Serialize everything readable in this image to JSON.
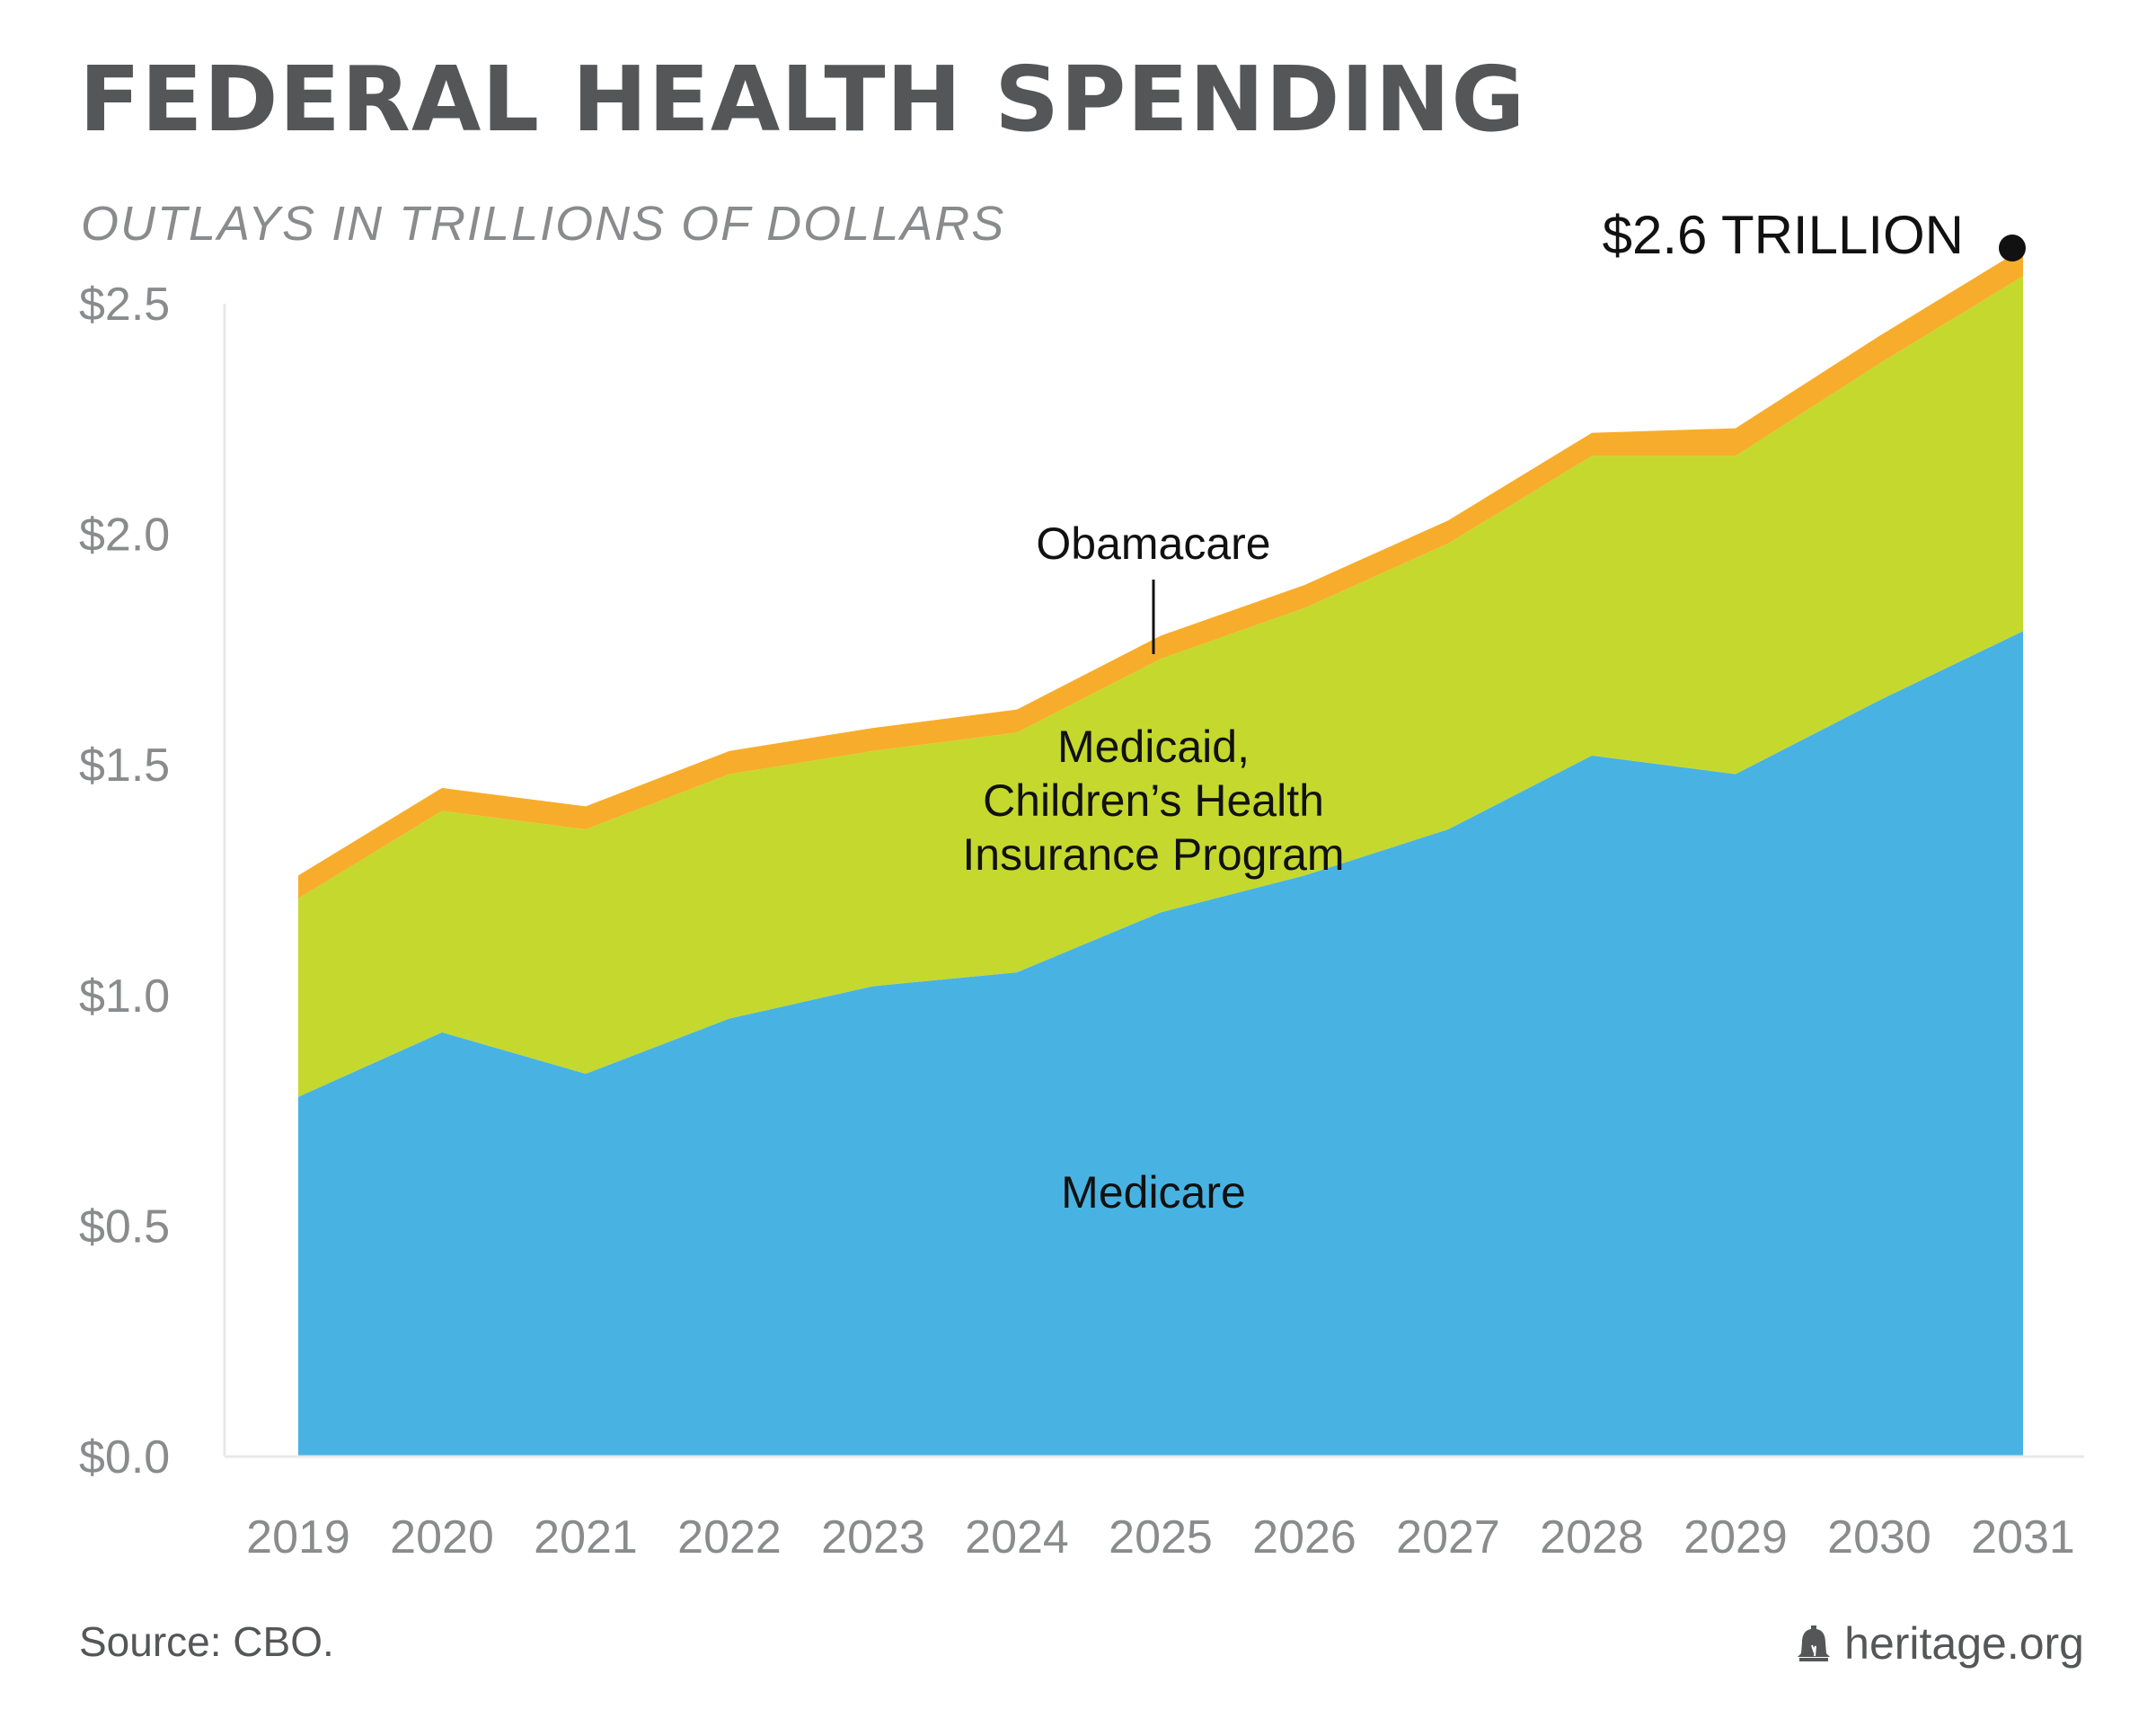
{
  "header": {
    "title": "FEDERAL HEALTH SPENDING",
    "subtitle": "OUTLAYS IN TRILLIONS OF DOLLARS"
  },
  "footer": {
    "source": "Source: CBO.",
    "brand": "heritage.org",
    "brand_icon": "liberty-bell-icon"
  },
  "chart_data": {
    "type": "area",
    "stacked": true,
    "categories": [
      "2019",
      "2020",
      "2021",
      "2022",
      "2023",
      "2024",
      "2025",
      "2026",
      "2027",
      "2028",
      "2029",
      "2030",
      "2031"
    ],
    "series": [
      {
        "name": "Medicare",
        "color": "#48b3e2",
        "values": [
          0.78,
          0.92,
          0.83,
          0.95,
          1.02,
          1.05,
          1.18,
          1.26,
          1.36,
          1.52,
          1.48,
          1.64,
          1.79
        ]
      },
      {
        "name": "Medicaid, Children’s Health Insurance Program",
        "color": "#c5d82e",
        "values": [
          0.43,
          0.48,
          0.53,
          0.53,
          0.51,
          0.52,
          0.55,
          0.58,
          0.62,
          0.65,
          0.69,
          0.73,
          0.77
        ]
      },
      {
        "name": "Obamacare",
        "color": "#f7ad2b",
        "values": [
          0.05,
          0.05,
          0.05,
          0.05,
          0.05,
          0.05,
          0.05,
          0.05,
          0.05,
          0.05,
          0.06,
          0.06,
          0.06
        ]
      }
    ],
    "series_labels": {
      "medicare": "Medicare",
      "medicaid_lines": [
        "Medicaid,",
        "Children’s Health",
        "Insurance Program"
      ],
      "obamacare": "Obamacare"
    },
    "yticks": [
      "$0.0",
      "$0.5",
      "$1.0",
      "$1.5",
      "$2.0",
      "$2.5"
    ],
    "ytick_values": [
      0,
      0.5,
      1.0,
      1.5,
      2.0,
      2.5
    ],
    "ylim": [
      0,
      2.5
    ],
    "annotation": {
      "text": "$2.6 TRILLION",
      "x": "2031",
      "y": 2.62
    },
    "grid": false
  }
}
